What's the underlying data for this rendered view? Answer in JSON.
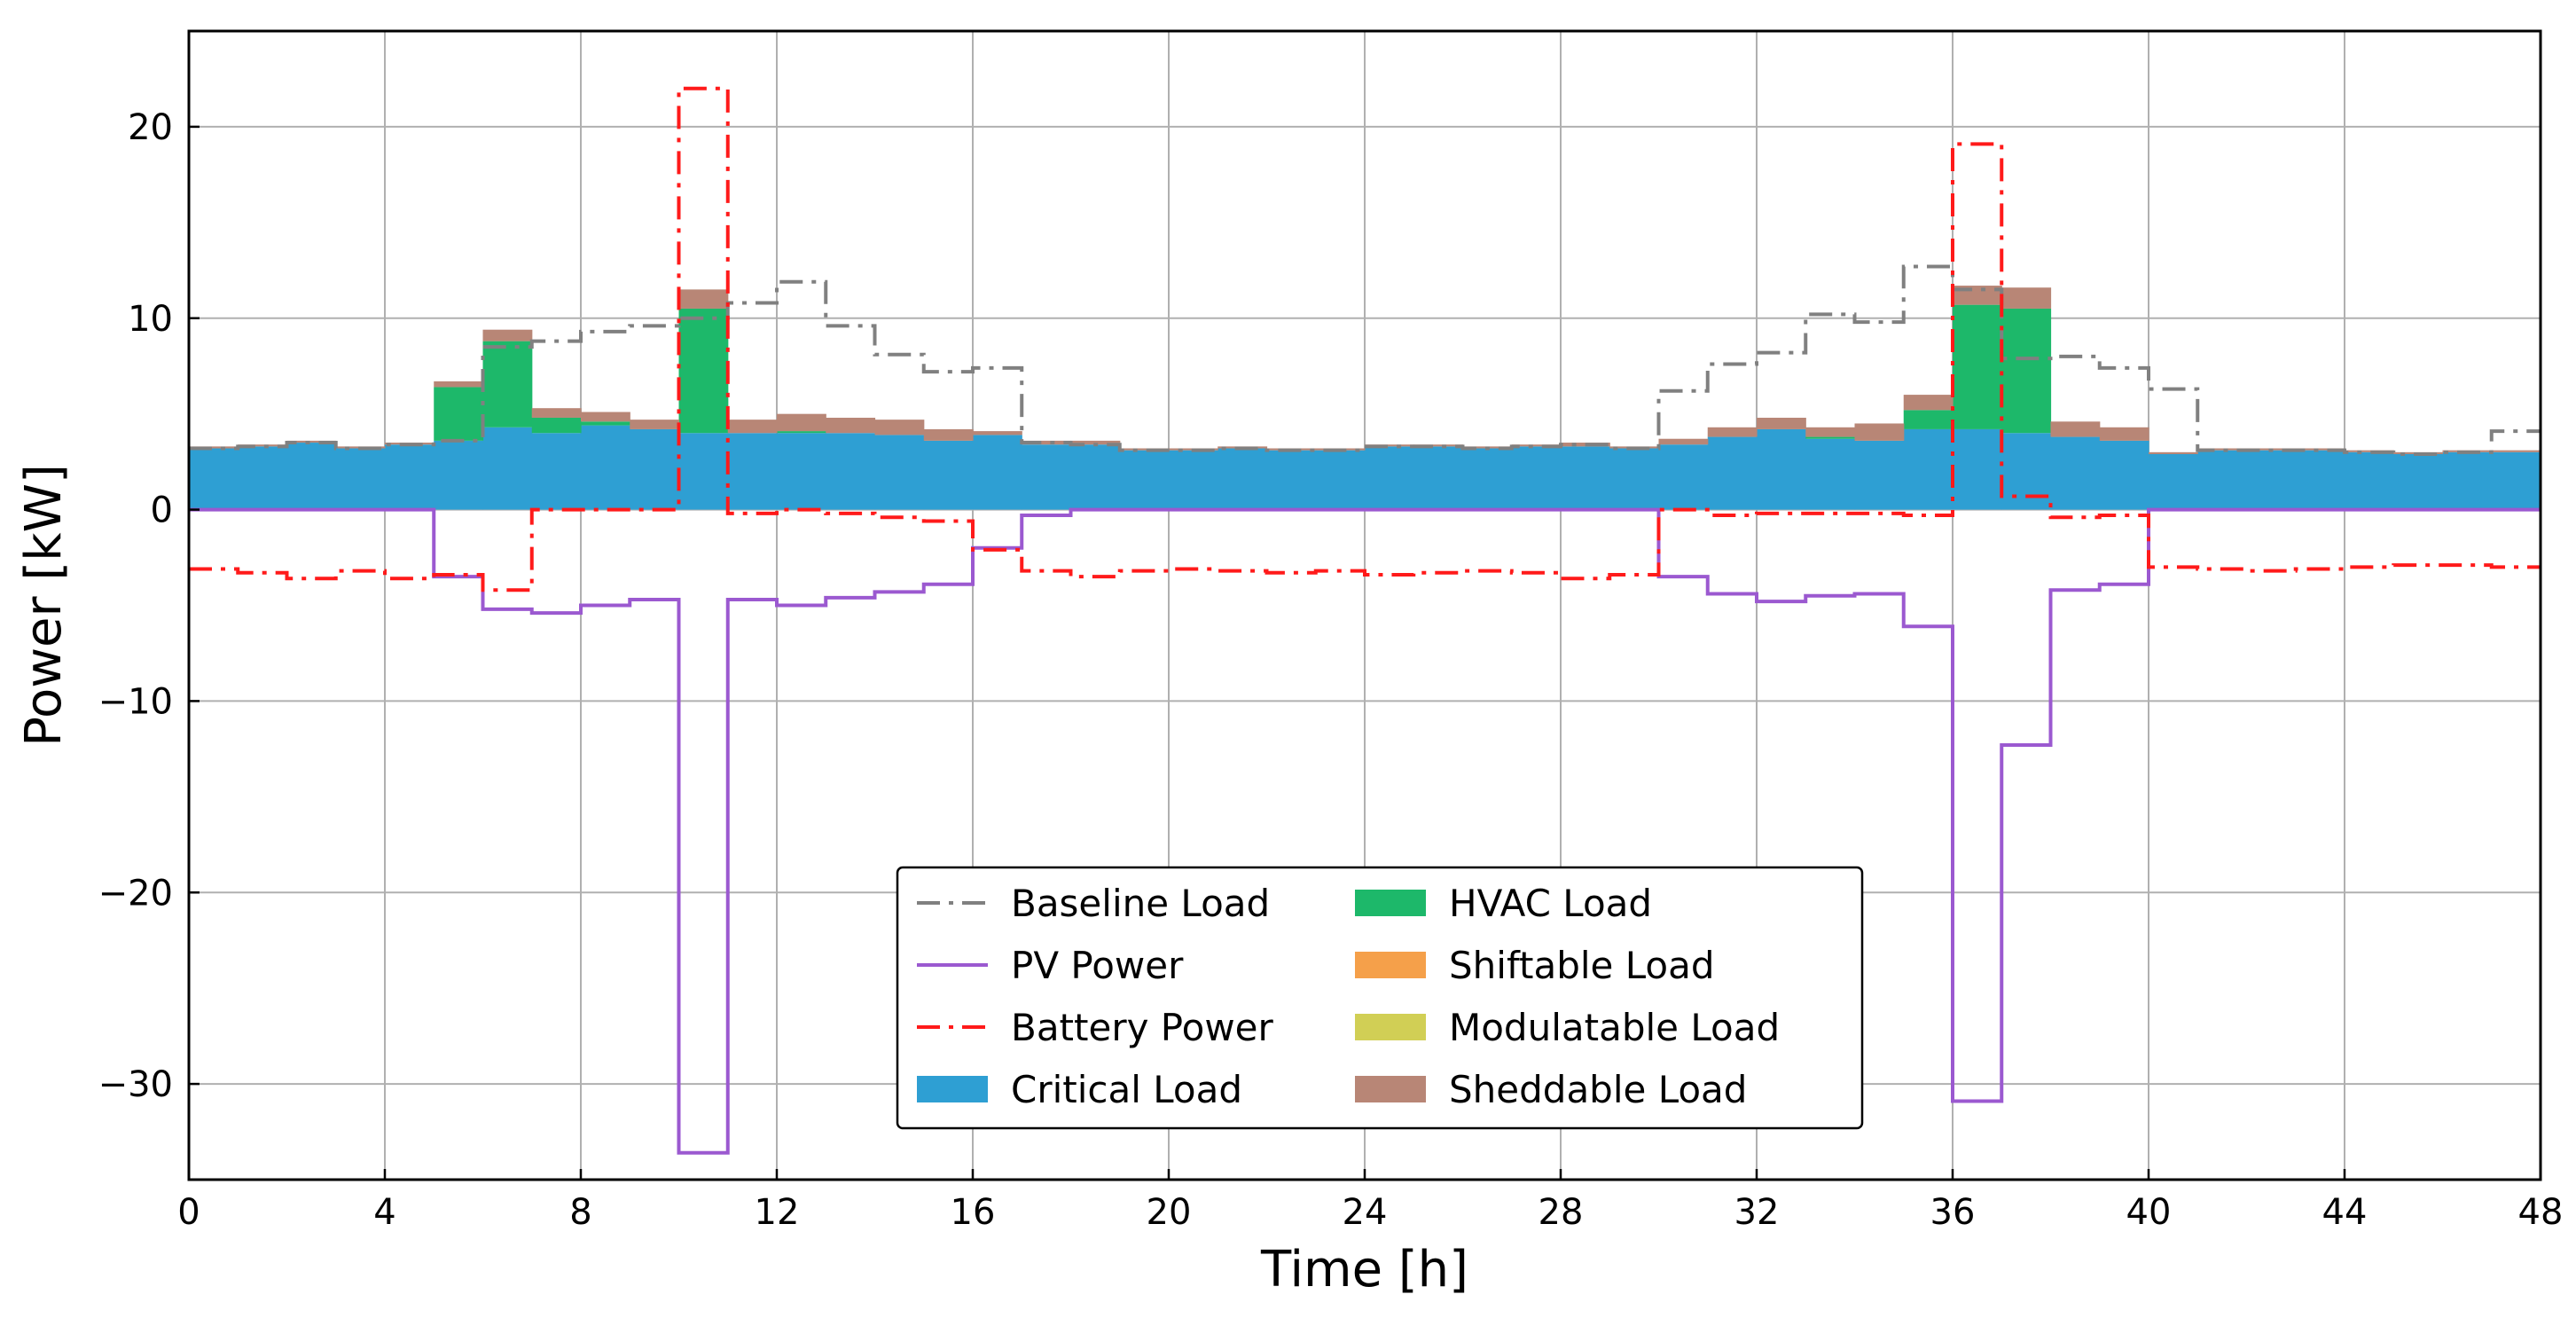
{
  "chart_data": {
    "type": "step-area",
    "title": "",
    "xlabel": "Time [h]",
    "ylabel": "Power [kW]",
    "xlim": [
      0,
      48
    ],
    "ylim": [
      -35,
      25
    ],
    "xticks": [
      0,
      4,
      8,
      12,
      16,
      20,
      24,
      28,
      32,
      36,
      40,
      44,
      48
    ],
    "yticks": [
      20,
      10,
      0,
      -10,
      -20,
      -30
    ],
    "ytick_labels": [
      "20",
      "10",
      "0",
      "−10",
      "−20",
      "−30"
    ],
    "grid": true,
    "legend_position": "lower-center",
    "hour_edges": [
      0,
      1,
      2,
      3,
      4,
      5,
      6,
      7,
      8,
      9,
      10,
      11,
      12,
      13,
      14,
      15,
      16,
      17,
      18,
      19,
      20,
      21,
      22,
      23,
      24,
      25,
      26,
      27,
      28,
      29,
      30,
      31,
      32,
      33,
      34,
      35,
      36,
      37,
      38,
      39,
      40,
      41,
      42,
      43,
      44,
      45,
      46,
      47,
      48
    ],
    "stacked_series": [
      {
        "name": "Critical Load",
        "color": "#2e9fd3",
        "values": [
          3.2,
          3.3,
          3.5,
          3.2,
          3.4,
          3.6,
          4.3,
          4.0,
          4.4,
          4.2,
          4.0,
          4.0,
          4.0,
          4.0,
          3.9,
          3.6,
          3.9,
          3.4,
          3.4,
          3.1,
          3.1,
          3.2,
          3.1,
          3.1,
          3.3,
          3.3,
          3.2,
          3.3,
          3.3,
          3.2,
          3.4,
          3.8,
          4.2,
          3.7,
          3.6,
          4.2,
          4.2,
          4.0,
          3.8,
          3.6,
          2.9,
          3.1,
          3.1,
          3.1,
          3.0,
          2.9,
          3.0,
          3.0
        ]
      },
      {
        "name": "HVAC Load",
        "color": "#1db86a",
        "values": [
          0,
          0,
          0,
          0,
          0,
          2.8,
          4.5,
          0.8,
          0.2,
          0,
          6.5,
          0,
          0.1,
          0,
          0,
          0,
          0,
          0,
          0,
          0,
          0,
          0,
          0,
          0,
          0,
          0,
          0,
          0,
          0,
          0,
          0,
          0,
          0,
          0.1,
          0,
          1.0,
          6.5,
          6.5,
          0,
          0,
          0,
          0,
          0,
          0,
          0,
          0,
          0,
          0
        ]
      },
      {
        "name": "Shiftable Load",
        "color": "#f5a04a",
        "values": [
          0,
          0,
          0,
          0,
          0,
          0,
          0,
          0,
          0,
          0,
          0,
          0,
          0,
          0,
          0,
          0,
          0,
          0,
          0,
          0,
          0,
          0,
          0,
          0,
          0,
          0,
          0,
          0,
          0,
          0,
          0,
          0,
          0,
          0,
          0,
          0,
          0,
          0,
          0,
          0,
          0,
          0,
          0,
          0,
          0,
          0,
          0,
          0
        ]
      },
      {
        "name": "Modulatable Load",
        "color": "#d1cf55",
        "values": [
          0,
          0,
          0,
          0,
          0,
          0,
          0,
          0,
          0,
          0,
          0,
          0,
          0,
          0,
          0,
          0,
          0,
          0,
          0,
          0,
          0,
          0,
          0,
          0,
          0,
          0,
          0,
          0,
          0,
          0,
          0,
          0,
          0,
          0,
          0,
          0,
          0,
          0,
          0,
          0,
          0,
          0,
          0,
          0,
          0,
          0,
          0,
          0
        ]
      },
      {
        "name": "Sheddable Load",
        "color": "#b88676",
        "values": [
          0.1,
          0.1,
          0.1,
          0.1,
          0.1,
          0.3,
          0.6,
          0.5,
          0.5,
          0.5,
          1.0,
          0.7,
          0.9,
          0.8,
          0.8,
          0.6,
          0.2,
          0.2,
          0.2,
          0.1,
          0.1,
          0.1,
          0.1,
          0.1,
          0.1,
          0.1,
          0.1,
          0.1,
          0.2,
          0.1,
          0.3,
          0.5,
          0.6,
          0.5,
          0.9,
          0.8,
          1.0,
          1.1,
          0.8,
          0.7,
          0.1,
          0.1,
          0.1,
          0.1,
          0.1,
          0.1,
          0.1,
          0.1
        ]
      }
    ],
    "line_series": [
      {
        "name": "Baseline Load",
        "color": "#808080",
        "style": "dashdot",
        "values": [
          3.2,
          3.3,
          3.5,
          3.2,
          3.4,
          3.6,
          8.5,
          8.8,
          9.3,
          9.6,
          10.0,
          10.8,
          11.9,
          9.6,
          8.1,
          7.2,
          7.4,
          3.5,
          3.4,
          3.1,
          3.1,
          3.2,
          3.1,
          3.1,
          3.3,
          3.3,
          3.2,
          3.3,
          3.4,
          3.2,
          6.2,
          7.6,
          8.2,
          10.2,
          9.8,
          12.7,
          11.5,
          7.9,
          8.0,
          7.4,
          6.3,
          3.1,
          3.1,
          3.1,
          3.0,
          2.9,
          3.0,
          4.1
        ]
      },
      {
        "name": "PV Power",
        "color": "#9b59d0",
        "style": "solid",
        "values": [
          0,
          0,
          0,
          0,
          0,
          -3.5,
          -5.2,
          -5.4,
          -5.0,
          -4.7,
          -33.6,
          -4.7,
          -5.0,
          -4.6,
          -4.3,
          -3.9,
          -2.0,
          -0.3,
          0,
          0,
          0,
          0,
          0,
          0,
          0,
          0,
          0,
          0,
          0,
          0,
          -3.5,
          -4.4,
          -4.8,
          -4.5,
          -4.4,
          -6.1,
          -30.9,
          -12.3,
          -4.2,
          -3.9,
          0,
          0,
          0,
          0,
          0,
          0,
          0,
          0
        ]
      },
      {
        "name": "Battery Power",
        "color": "#ff1a1a",
        "style": "dashdot",
        "values": [
          -3.1,
          -3.3,
          -3.6,
          -3.2,
          -3.6,
          -3.4,
          -4.2,
          0,
          0,
          0,
          22.0,
          -0.2,
          0,
          -0.2,
          -0.4,
          -0.6,
          -2.1,
          -3.2,
          -3.5,
          -3.2,
          -3.1,
          -3.2,
          -3.3,
          -3.2,
          -3.4,
          -3.3,
          -3.2,
          -3.3,
          -3.6,
          -3.4,
          0,
          -0.3,
          -0.2,
          -0.2,
          -0.2,
          -0.3,
          19.1,
          0.7,
          -0.4,
          -0.3,
          -3.0,
          -3.1,
          -3.2,
          -3.1,
          -3.0,
          -2.9,
          -2.9,
          -3.0
        ]
      }
    ],
    "legend": [
      {
        "label": "Baseline Load",
        "kind": "line",
        "color": "#808080",
        "dash": "dashdot"
      },
      {
        "label": "PV Power",
        "kind": "line",
        "color": "#9b59d0",
        "dash": "solid"
      },
      {
        "label": "Battery Power",
        "kind": "line",
        "color": "#ff1a1a",
        "dash": "dashdot"
      },
      {
        "label": "Critical Load",
        "kind": "patch",
        "color": "#2e9fd3"
      },
      {
        "label": "HVAC Load",
        "kind": "patch",
        "color": "#1db86a"
      },
      {
        "label": "Shiftable Load",
        "kind": "patch",
        "color": "#f5a04a"
      },
      {
        "label": "Modulatable Load",
        "kind": "patch",
        "color": "#d1cf55"
      },
      {
        "label": "Sheddable Load",
        "kind": "patch",
        "color": "#b88676"
      }
    ]
  }
}
